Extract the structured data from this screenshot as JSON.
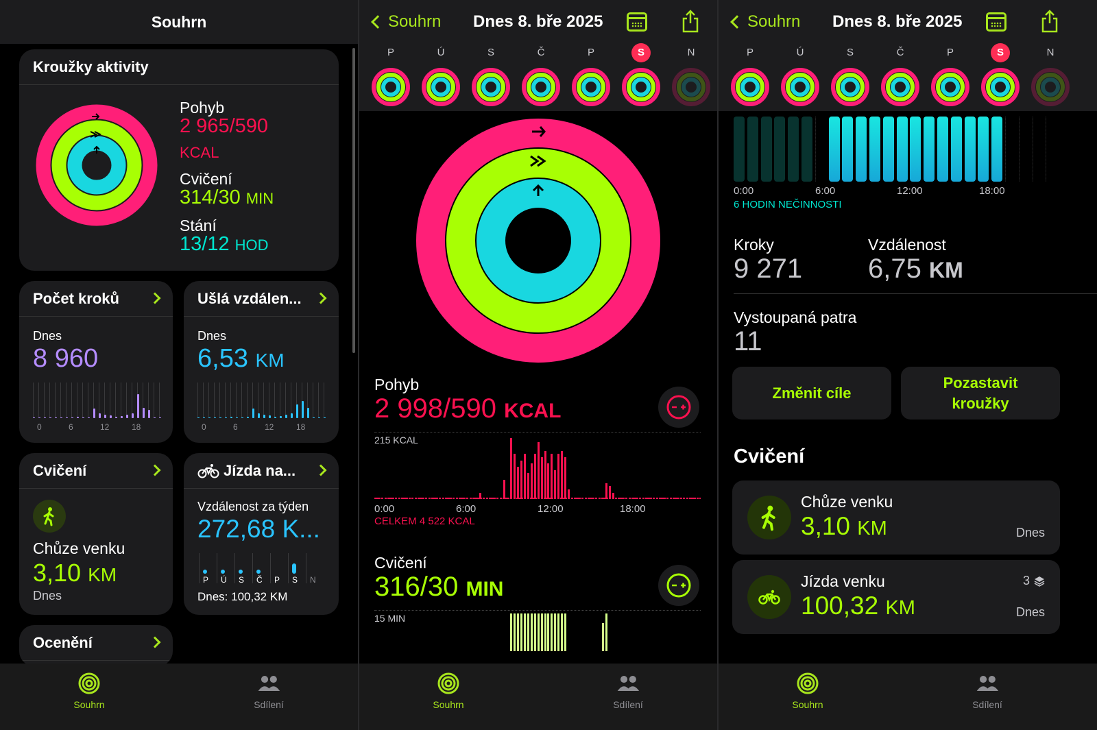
{
  "panel1": {
    "title": "Souhrn",
    "rings_card": {
      "title": "Kroužky aktivity",
      "move_label": "Pohyb",
      "move_value": "2 965/590",
      "move_unit": "KCAL",
      "exercise_label": "Cvičení",
      "exercise_value": "314/30",
      "exercise_unit": "MIN",
      "stand_label": "Stání",
      "stand_value": "13/12",
      "stand_unit": "HOD"
    },
    "steps_card": {
      "title": "Počet kroků",
      "sub": "Dnes",
      "value": "8 960",
      "ticks": [
        "0",
        "6",
        "12",
        "18"
      ]
    },
    "distance_card": {
      "title": "Ušlá vzdálen...",
      "sub": "Dnes",
      "value": "6,53",
      "unit": "KM",
      "ticks": [
        "0",
        "6",
        "12",
        "18"
      ]
    },
    "workout_card": {
      "title": "Cvičení",
      "name": "Chůze venku",
      "value": "3,10",
      "unit": "KM",
      "day": "Dnes"
    },
    "cycling_card": {
      "title": "Jízda na...",
      "sub": "Vzdálenost za týden",
      "value": "272,68 K...",
      "days": [
        "P",
        "Ú",
        "S",
        "Č",
        "P",
        "S",
        "N"
      ],
      "footer": "Dnes: 100,32 KM"
    },
    "awards_card": {
      "title": "Ocenění"
    }
  },
  "tabs": {
    "summary": "Souhrn",
    "sharing": "Sdílení"
  },
  "nav": {
    "back": "Souhrn",
    "date": "Dnes 8. bře 2025"
  },
  "week": [
    "P",
    "Ú",
    "S",
    "Č",
    "P",
    "S",
    "N"
  ],
  "panel2": {
    "move": {
      "label": "Pohyb",
      "value": "2 998/590",
      "unit": "KCAL",
      "max": "215 KCAL",
      "ticks": [
        "0:00",
        "6:00",
        "12:00",
        "18:00"
      ],
      "total": "CELKEM 4 522 KCAL"
    },
    "exercise": {
      "label": "Cvičení",
      "value": "316/30",
      "unit": "MIN",
      "max": "15 MIN"
    }
  },
  "panel3": {
    "stand_ticks": [
      "0:00",
      "6:00",
      "12:00",
      "18:00"
    ],
    "inactivity": "6 HODIN NEČINNOSTI",
    "steps_label": "Kroky",
    "steps_value": "9 271",
    "dist_label": "Vzdálenost",
    "dist_value": "6,75",
    "dist_unit": "KM",
    "floors_label": "Vystoupaná patra",
    "floors_value": "11",
    "btn_goals": "Změnit cíle",
    "btn_pause": "Pozastavit kroužky",
    "workouts_title": "Cvičení",
    "workout1": {
      "name": "Chůze venku",
      "value": "3,10",
      "unit": "KM",
      "day": "Dnes"
    },
    "workout2": {
      "name": "Jízda venku",
      "value": "100,32",
      "unit": "KM",
      "day": "Dnes",
      "count": "3"
    }
  },
  "colors": {
    "move": "#fa114f",
    "exercise": "#a8ff04",
    "stand": "#00e6d0",
    "accent": "#a8e61d"
  }
}
